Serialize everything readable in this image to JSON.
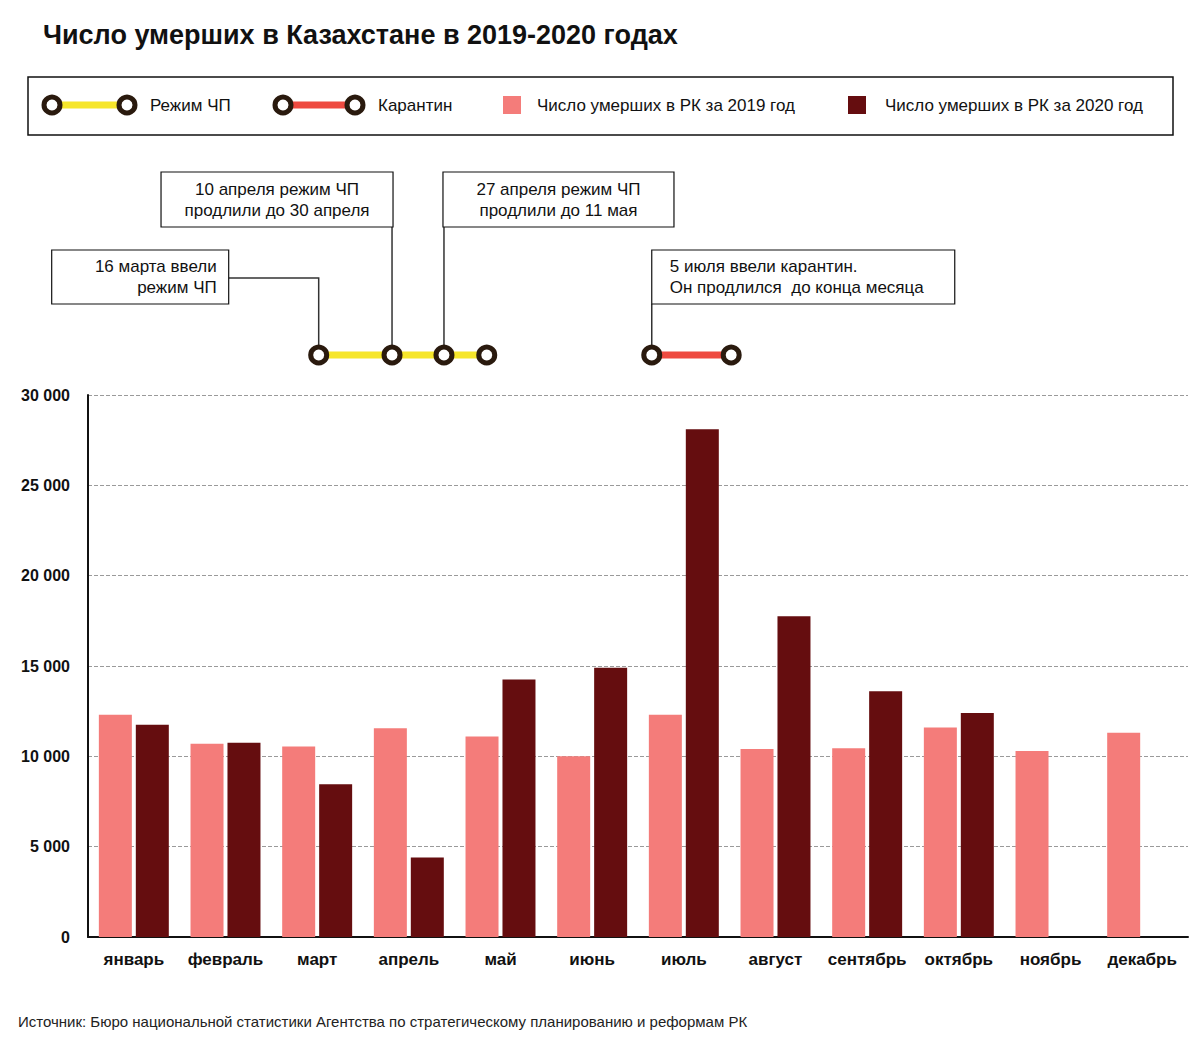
{
  "chart_data": {
    "type": "bar",
    "title": "Число умерших в Казахстане в 2019-2020 годах",
    "source": "Источник: Бюро национальной статистики Агентства по стратегическому планированию и реформам РК",
    "categories": [
      "январь",
      "февраль",
      "март",
      "апрель",
      "май",
      "июнь",
      "июль",
      "август",
      "сентябрь",
      "октябрь",
      "ноябрь",
      "декабрь"
    ],
    "series": [
      {
        "name": "Число умерших в РК за 2019 год",
        "color": "#f47c7a",
        "values": [
          12300,
          10700,
          10550,
          11550,
          11100,
          10000,
          12300,
          10400,
          10450,
          11600,
          10300,
          11300
        ]
      },
      {
        "name": "Число умерших в РК за 2020 год",
        "color": "#650d0f",
        "values": [
          11750,
          10750,
          8450,
          4400,
          14250,
          14900,
          28100,
          17750,
          13600,
          12400,
          null,
          null
        ]
      }
    ],
    "ylim": [
      0,
      30000
    ],
    "yticks": [
      0,
      {
        "value": 5000,
        "label": "5 000"
      },
      {
        "value": 10000,
        "label": "10 000"
      },
      {
        "value": 15000,
        "label": "15 000"
      },
      {
        "value": 20000,
        "label": "20 000"
      },
      {
        "value": 25000,
        "label": "25 000"
      },
      {
        "value": 30000,
        "label": "30 000"
      }
    ],
    "grid": true,
    "timeline": {
      "periods": [
        {
          "name": "Режим ЧП",
          "color": "#f6e62b",
          "points": [
            {
              "month": "март",
              "day": 16
            },
            {
              "month": "апрель",
              "day": 10
            },
            {
              "month": "апрель",
              "day": 27
            },
            {
              "month": "май",
              "day": 11
            }
          ]
        },
        {
          "name": "Карантин",
          "color": "#ee4a40",
          "points": [
            {
              "month": "июль",
              "day": 5
            },
            {
              "month": "июль",
              "day": 31
            }
          ]
        }
      ],
      "annotations": [
        {
          "text": "16 марта ввели\nрежим ЧП",
          "month": "март",
          "day": 16
        },
        {
          "text": "10 апреля режим ЧП\nпродлили до 30 апреля",
          "month": "апрель",
          "day": 10
        },
        {
          "text": "27 апреля режим ЧП\nпродлили до 11 мая",
          "month": "апрель",
          "day": 27
        },
        {
          "text": "5 июля ввели карантин.\nОн продлился  до конца месяца",
          "month": "июль",
          "day": 5
        }
      ]
    }
  }
}
